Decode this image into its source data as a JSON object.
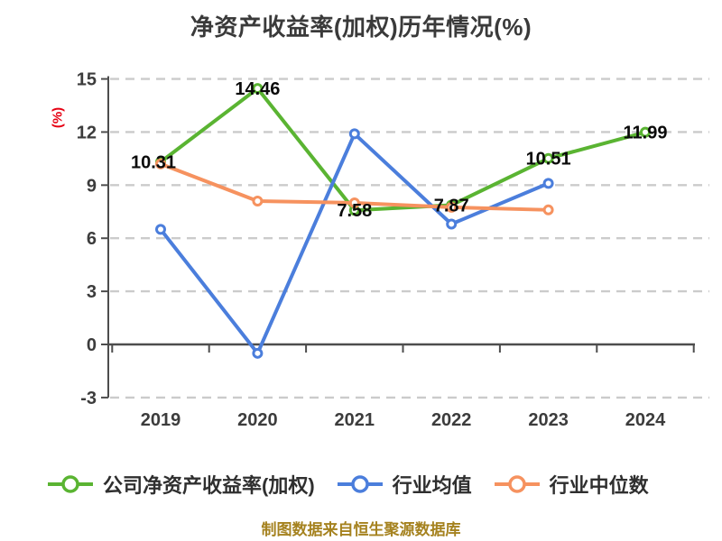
{
  "title": "净资产收益率(加权)历年情况(%)",
  "y_axis_unit": "(%)",
  "footer": "制图数据来自恒生聚源数据库",
  "colors": {
    "company_line": "#5ab432",
    "industry_avg_line": "#4b7edc",
    "industry_median_line": "#f6925f",
    "gridline": "#cbcbcb",
    "axis": "#4d4d4d",
    "tick_text": "#3c3c3c",
    "title_text": "#3a3a3a",
    "unit_text": "#e60012",
    "footer_text": "#a5821f"
  },
  "chart_data": {
    "type": "line",
    "categories": [
      "2019",
      "2020",
      "2021",
      "2022",
      "2023",
      "2024"
    ],
    "title": "净资产收益率(加权)历年情况(%)",
    "xlabel": "",
    "ylabel": "(%)",
    "ylim": [
      -3,
      15
    ],
    "yticks": [
      15,
      12,
      9,
      6,
      3,
      0,
      -3
    ],
    "grid": "horizontal-dashed",
    "legend_position": "bottom",
    "series": [
      {
        "name": "公司净资产收益率(加权)",
        "color": "#5ab432",
        "values": [
          10.31,
          14.46,
          7.58,
          7.87,
          10.51,
          11.99
        ],
        "labels": [
          "10.31",
          "14.46",
          "7.58",
          "7.87",
          "10.51",
          "11.99"
        ]
      },
      {
        "name": "行业均值",
        "color": "#4b7edc",
        "values": [
          6.5,
          -0.5,
          11.9,
          6.8,
          9.1,
          null
        ]
      },
      {
        "name": "行业中位数",
        "color": "#f6925f",
        "values": [
          10.2,
          8.1,
          8.0,
          7.75,
          7.6,
          null
        ]
      }
    ]
  },
  "legend": {
    "items": [
      {
        "label": "公司净资产收益率(加权)",
        "color": "#5ab432"
      },
      {
        "label": "行业均值",
        "color": "#4b7edc"
      },
      {
        "label": "行业中位数",
        "color": "#f6925f"
      }
    ]
  }
}
